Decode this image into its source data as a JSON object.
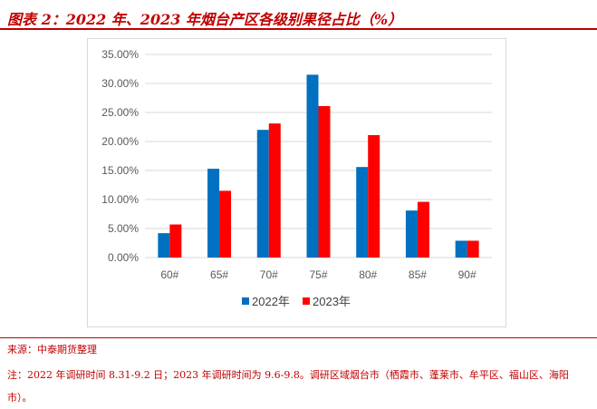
{
  "title": "图表 2：2022 年、2023 年烟台产区各级别果径占比（%）",
  "chart_data": {
    "type": "bar",
    "categories": [
      "60#",
      "65#",
      "70#",
      "75#",
      "80#",
      "85#",
      "90#"
    ],
    "series": [
      {
        "name": "2022年",
        "values": [
          4.2,
          15.3,
          22.0,
          31.5,
          15.6,
          8.1,
          2.9
        ],
        "color": "#0070c0"
      },
      {
        "name": "2023年",
        "values": [
          5.7,
          11.5,
          23.1,
          26.1,
          21.1,
          9.6,
          2.9
        ],
        "color": "#ff0000"
      }
    ],
    "y_ticks": [
      "0.00%",
      "5.00%",
      "10.00%",
      "15.00%",
      "20.00%",
      "25.00%",
      "30.00%",
      "35.00%"
    ],
    "ylim": [
      0,
      35
    ],
    "grid": true,
    "legend": "bottom"
  },
  "source": "来源：中泰期货整理",
  "note": "注：2022 年调研时间 8.31-9.2 日；2023 年调研时间为 9.6-9.8。调研区域烟台市（栖霞市、蓬莱市、牟平区、福山区、海阳市）。"
}
